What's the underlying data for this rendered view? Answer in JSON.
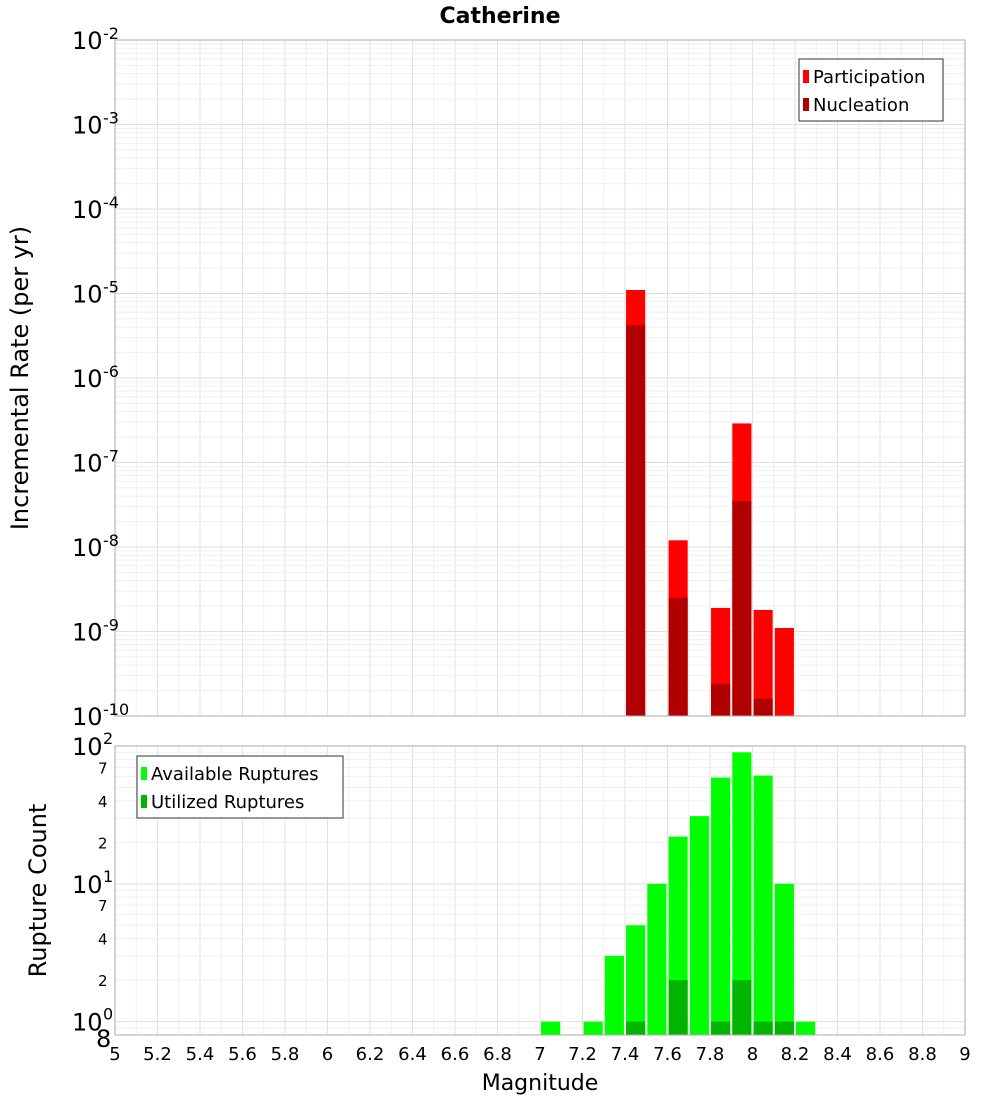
{
  "chart_data": [
    {
      "type": "bar",
      "title": "Catherine",
      "xlabel": "",
      "ylabel": "Incremental Rate (per yr)",
      "yscale": "log",
      "ylim": [
        1e-10,
        0.01
      ],
      "xlim": [
        5,
        9
      ],
      "y_major_ticks": [
        {
          "base": "10",
          "exp": "-10"
        },
        {
          "base": "10",
          "exp": "-9"
        },
        {
          "base": "10",
          "exp": "-8"
        },
        {
          "base": "10",
          "exp": "-7"
        },
        {
          "base": "10",
          "exp": "-6"
        },
        {
          "base": "10",
          "exp": "-5"
        },
        {
          "base": "10",
          "exp": "-4"
        },
        {
          "base": "10",
          "exp": "-3"
        },
        {
          "base": "10",
          "exp": "-2"
        }
      ],
      "legend": {
        "position": "top-right",
        "entries": [
          {
            "name": "Participation",
            "color": "#ff0000"
          },
          {
            "name": "Nucleation",
            "color": "#b00000"
          }
        ]
      },
      "series": [
        {
          "name": "Participation",
          "color": "#ff0000",
          "x": [
            7.45,
            7.65,
            7.85,
            7.95,
            8.05,
            8.15
          ],
          "values": [
            1.1e-05,
            1.2e-08,
            1.9e-09,
            2.9e-07,
            1.8e-09,
            1.1e-09
          ]
        },
        {
          "name": "Nucleation",
          "color": "#b00000",
          "x": [
            7.45,
            7.65,
            7.85,
            7.95,
            8.05
          ],
          "values": [
            4.2e-06,
            2.5e-09,
            2.4e-10,
            3.5e-08,
            1.6e-10
          ]
        }
      ]
    },
    {
      "type": "bar",
      "title": "",
      "xlabel": "Magnitude",
      "ylabel": "Rupture Count",
      "yscale": "log",
      "ylim": [
        0.8,
        100
      ],
      "xlim": [
        5,
        9
      ],
      "x_tick_labels": [
        "5",
        "5.2",
        "5.4",
        "5.6",
        "5.8",
        "6",
        "6.2",
        "6.4",
        "6.6",
        "6.8",
        "7",
        "7.2",
        "7.4",
        "7.6",
        "7.8",
        "8",
        "8.2",
        "8.4",
        "8.6",
        "8.8",
        "9"
      ],
      "y_major_ticks": [
        {
          "base": "10",
          "exp": "0"
        },
        {
          "base": "10",
          "exp": "1"
        },
        {
          "base": "10",
          "exp": "2"
        }
      ],
      "y_minor_labels": [
        "8",
        "2",
        "4",
        "7",
        "2",
        "4",
        "7"
      ],
      "legend": {
        "position": "top-left",
        "entries": [
          {
            "name": "Available Ruptures",
            "color": "#00ff00"
          },
          {
            "name": "Utilized Ruptures",
            "color": "#00b400"
          }
        ]
      },
      "series": [
        {
          "name": "Available Ruptures",
          "color": "#00ff00",
          "x": [
            7.05,
            7.25,
            7.35,
            7.45,
            7.55,
            7.65,
            7.75,
            7.85,
            7.95,
            8.05,
            8.15,
            8.25
          ],
          "values": [
            1,
            1,
            3,
            5,
            10,
            22,
            31,
            59,
            90,
            61,
            10,
            1
          ]
        },
        {
          "name": "Utilized Ruptures",
          "color": "#00b400",
          "x": [
            7.45,
            7.65,
            7.85,
            7.95,
            8.05,
            8.15
          ],
          "values": [
            1,
            2,
            1,
            2,
            1,
            1
          ]
        }
      ]
    }
  ]
}
